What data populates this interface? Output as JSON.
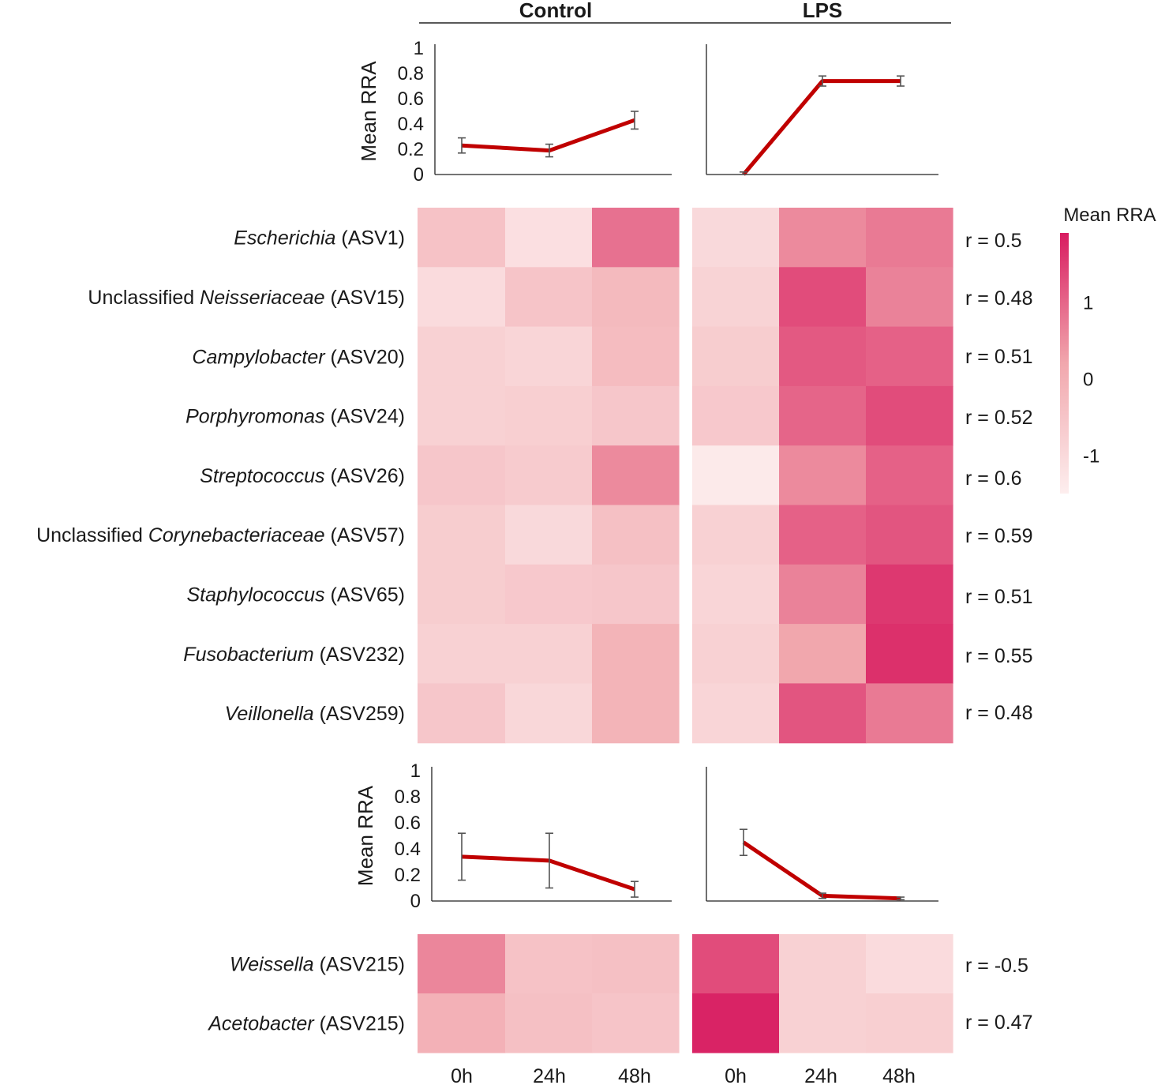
{
  "groups": [
    {
      "name": "Control"
    },
    {
      "name": "LPS"
    }
  ],
  "timepoints": [
    "0h",
    "24h",
    "48h"
  ],
  "line_color": "#c00000",
  "errorbar_color": "#555555",
  "chart_data": [
    {
      "type": "line",
      "panel": "top-control",
      "title": "Control",
      "ylabel": "Mean RRA",
      "ylim": [
        0,
        1
      ],
      "yticks": [
        "0",
        "0.2",
        "0.4",
        "0.6",
        "0.8",
        "1"
      ],
      "x": [
        "0h",
        "24h",
        "48h"
      ],
      "values": [
        0.23,
        0.19,
        0.43
      ],
      "errors": [
        0.06,
        0.05,
        0.07
      ]
    },
    {
      "type": "line",
      "panel": "top-lps",
      "title": "LPS",
      "ylabel": "",
      "ylim": [
        0,
        1
      ],
      "x": [
        "0h",
        "24h",
        "48h"
      ],
      "values": [
        0.0,
        0.74,
        0.74
      ],
      "errors": [
        0.02,
        0.04,
        0.04
      ]
    },
    {
      "type": "heatmap",
      "panel": "heatmap-top",
      "rows": [
        {
          "genus": "Escherichia",
          "prefix": "",
          "asv": " (ASV1)",
          "r": "r = 0.5",
          "control": [
            -0.45,
            -1.15,
            0.85
          ],
          "lps": [
            -1.0,
            0.55,
            0.75
          ]
        },
        {
          "genus": "Neisseriaceae",
          "prefix": "Unclassified ",
          "asv": " (ASV15)",
          "r": "r = 0.48",
          "control": [
            -1.05,
            -0.5,
            -0.25
          ],
          "lps": [
            -0.85,
            1.3,
            0.65
          ]
        },
        {
          "genus": "Campylobacter",
          "prefix": "",
          "asv": " (ASV20)",
          "r": "r = 0.51",
          "control": [
            -0.8,
            -0.9,
            -0.3
          ],
          "lps": [
            -0.7,
            1.15,
            1.05
          ]
        },
        {
          "genus": "Porphyromonas",
          "prefix": "",
          "asv": " (ASV24)",
          "r": "r = 0.52",
          "control": [
            -0.8,
            -0.75,
            -0.55
          ],
          "lps": [
            -0.6,
            1.0,
            1.3
          ]
        },
        {
          "genus": "Streptococcus",
          "prefix": "",
          "asv": " (ASV26)",
          "r": "r = 0.6",
          "control": [
            -0.55,
            -0.65,
            0.55
          ],
          "lps": [
            -1.4,
            0.55,
            1.05
          ]
        },
        {
          "genus": "Corynebacteriaceae",
          "prefix": "Unclassified ",
          "asv": " (ASV57)",
          "r": "r = 0.59",
          "control": [
            -0.7,
            -1.0,
            -0.4
          ],
          "lps": [
            -0.8,
            1.05,
            1.2
          ]
        },
        {
          "genus": "Staphylococcus",
          "prefix": "",
          "asv": " (ASV65)",
          "r": "r = 0.51",
          "control": [
            -0.7,
            -0.6,
            -0.55
          ],
          "lps": [
            -0.9,
            0.65,
            1.55
          ]
        },
        {
          "genus": "Fusobacterium",
          "prefix": "",
          "asv": " (ASV232)",
          "r": "r = 0.55",
          "control": [
            -0.8,
            -0.8,
            -0.1
          ],
          "lps": [
            -0.8,
            0.2,
            1.65
          ]
        },
        {
          "genus": "Veillonella",
          "prefix": "",
          "asv": " (ASV259)",
          "r": "r = 0.48",
          "control": [
            -0.55,
            -0.95,
            -0.1
          ],
          "lps": [
            -0.9,
            1.2,
            0.75
          ]
        }
      ]
    },
    {
      "type": "line",
      "panel": "bottom-control",
      "title": "",
      "ylabel": "Mean RRA",
      "ylim": [
        0,
        1
      ],
      "yticks": [
        "0",
        "0.2",
        "0.4",
        "0.6",
        "0.8",
        "1"
      ],
      "x": [
        "0h",
        "24h",
        "48h"
      ],
      "values": [
        0.34,
        0.31,
        0.09
      ],
      "errors": [
        0.18,
        0.21,
        0.06
      ]
    },
    {
      "type": "line",
      "panel": "bottom-lps",
      "title": "",
      "ylabel": "",
      "ylim": [
        0,
        1
      ],
      "x": [
        "0h",
        "24h",
        "48h"
      ],
      "values": [
        0.45,
        0.04,
        0.02
      ],
      "errors": [
        0.1,
        0.02,
        0.01
      ]
    },
    {
      "type": "heatmap",
      "panel": "heatmap-bottom",
      "rows": [
        {
          "genus": "Weissella",
          "prefix": "",
          "asv": " (ASV215)",
          "r": "r = -0.5",
          "control": [
            0.6,
            -0.45,
            -0.4
          ],
          "lps": [
            1.3,
            -0.8,
            -1.05
          ]
        },
        {
          "genus": "Acetobacter",
          "prefix": "",
          "asv": " (ASV215)",
          "r": "r = 0.47",
          "control": [
            -0.05,
            -0.4,
            -0.5
          ],
          "lps": [
            1.8,
            -0.8,
            -0.75
          ]
        }
      ]
    }
  ],
  "legend": {
    "title": "Mean RRA",
    "ticks": [
      "1",
      "0",
      "-1"
    ],
    "tick_values": [
      1,
      0,
      -1
    ],
    "range": [
      -1.5,
      1.9
    ],
    "color_low": "#fdeeee",
    "color_high": "#d81b60"
  }
}
